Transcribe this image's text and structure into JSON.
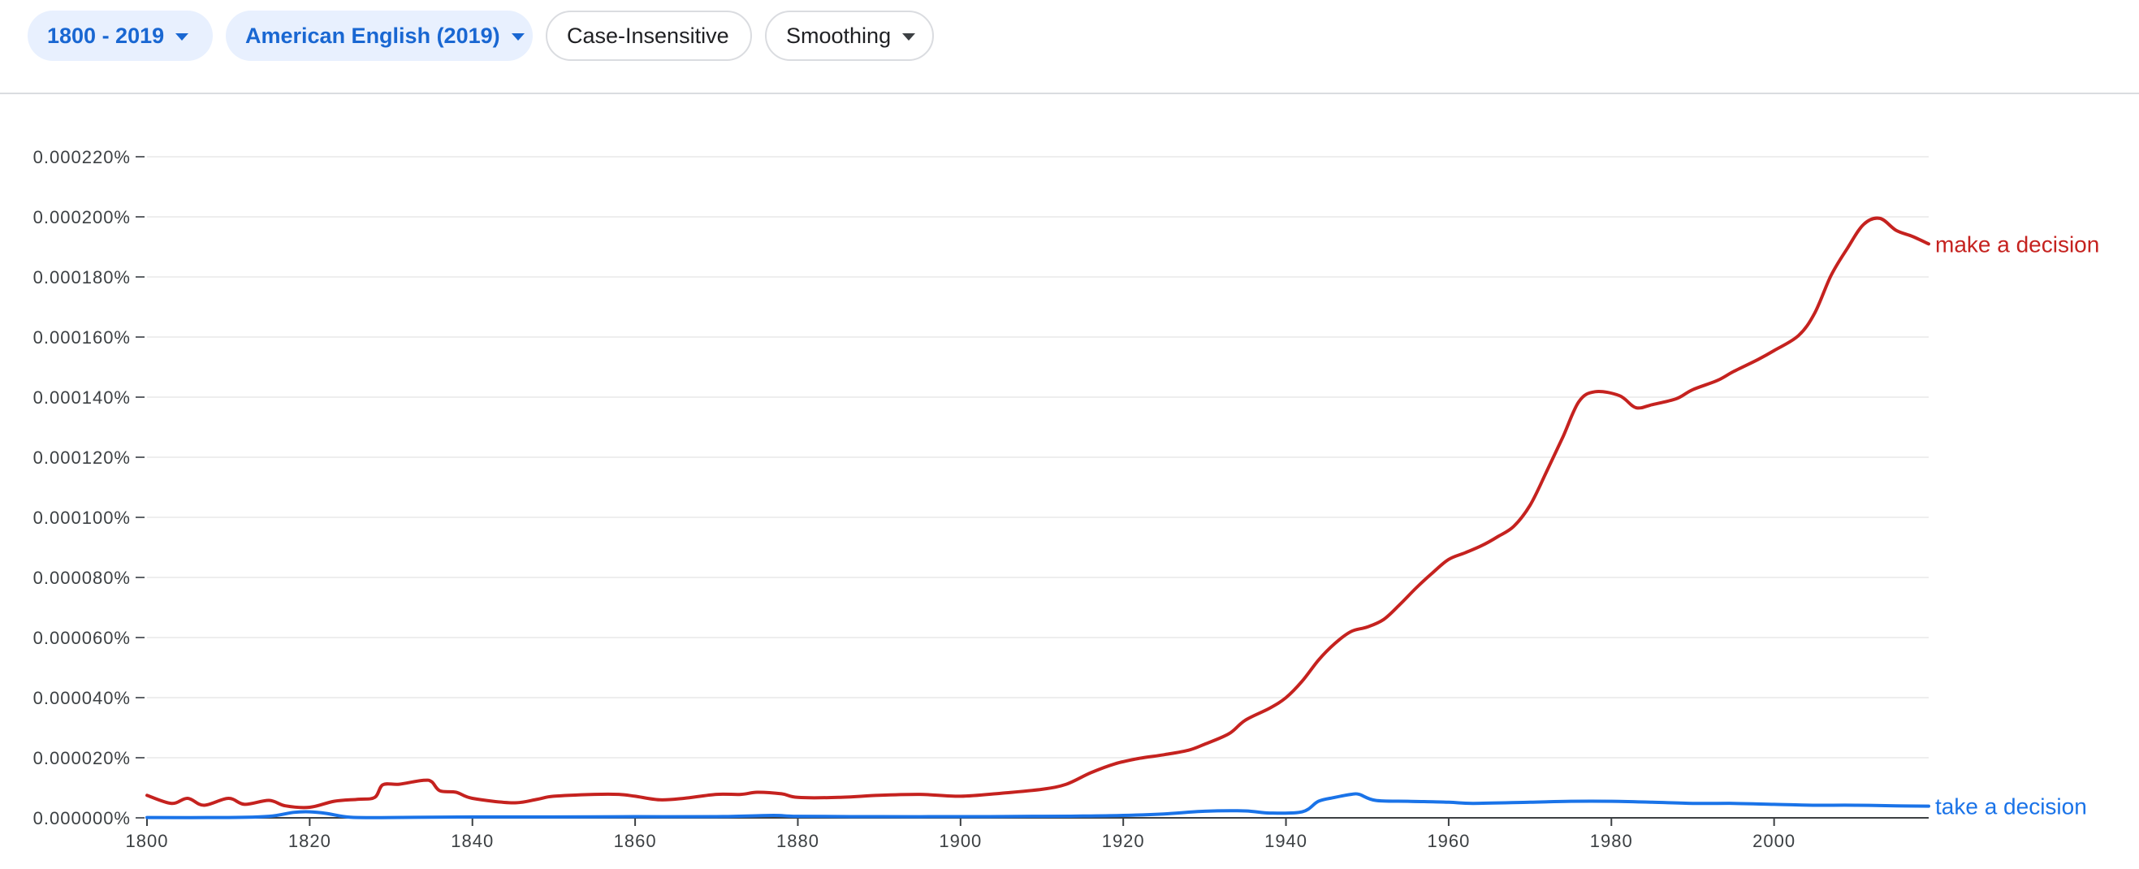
{
  "toolbar": {
    "year_range_label": "1800 - 2019",
    "corpus_label": "American English (2019)",
    "case_label": "Case-Insensitive",
    "smoothing_label": "Smoothing"
  },
  "colors": {
    "accent_blue": "#1967d2",
    "chip_bg": "#e8f0fe",
    "series_red": "#c5221f",
    "series_blue": "#1a73e8"
  },
  "chart_data": {
    "type": "line",
    "title": "",
    "xlabel": "",
    "ylabel": "",
    "xlim": [
      1800,
      2019
    ],
    "ylim": [
      0,
      0.00022
    ],
    "grid": true,
    "legend": "end-of-line labels",
    "x_ticks": [
      "1800",
      "1820",
      "1840",
      "1860",
      "1880",
      "1900",
      "1920",
      "1940",
      "1960",
      "1980",
      "2000"
    ],
    "y_ticks": [
      "0.000000%",
      "0.000020%",
      "0.000040%",
      "0.000060%",
      "0.000080%",
      "0.000100%",
      "0.000120%",
      "0.000140%",
      "0.000160%",
      "0.000180%",
      "0.000200%",
      "0.000220%"
    ],
    "series": [
      {
        "name": "make a decision",
        "color": "#c5221f",
        "points": [
          [
            1800,
            7.5e-06
          ],
          [
            1803,
            4.8e-06
          ],
          [
            1805,
            6.5e-06
          ],
          [
            1807,
            4.2e-06
          ],
          [
            1810,
            6.5e-06
          ],
          [
            1812,
            4.5e-06
          ],
          [
            1815,
            5.8e-06
          ],
          [
            1817,
            4e-06
          ],
          [
            1820,
            3.5e-06
          ],
          [
            1823,
            5.5e-06
          ],
          [
            1826,
            6.2e-06
          ],
          [
            1828,
            6.8e-06
          ],
          [
            1829,
            1.1e-05
          ],
          [
            1831,
            1.12e-05
          ],
          [
            1834,
            1.25e-05
          ],
          [
            1835,
            1.2e-05
          ],
          [
            1836,
            9e-06
          ],
          [
            1838,
            8.5e-06
          ],
          [
            1840,
            6.5e-06
          ],
          [
            1845,
            5e-06
          ],
          [
            1848,
            6.2e-06
          ],
          [
            1850,
            7.2e-06
          ],
          [
            1855,
            7.8e-06
          ],
          [
            1858,
            7.8e-06
          ],
          [
            1860,
            7.2e-06
          ],
          [
            1863,
            6e-06
          ],
          [
            1866,
            6.5e-06
          ],
          [
            1870,
            7.8e-06
          ],
          [
            1873,
            7.8e-06
          ],
          [
            1875,
            8.5e-06
          ],
          [
            1878,
            8e-06
          ],
          [
            1880,
            6.8e-06
          ],
          [
            1885,
            6.8e-06
          ],
          [
            1890,
            7.5e-06
          ],
          [
            1895,
            7.8e-06
          ],
          [
            1900,
            7.2e-06
          ],
          [
            1905,
            8.2e-06
          ],
          [
            1910,
            9.5e-06
          ],
          [
            1913,
            1.12e-05
          ],
          [
            1916,
            1.5e-05
          ],
          [
            1919,
            1.8e-05
          ],
          [
            1922,
            1.98e-05
          ],
          [
            1925,
            2.1e-05
          ],
          [
            1928,
            2.25e-05
          ],
          [
            1930,
            2.45e-05
          ],
          [
            1933,
            2.8e-05
          ],
          [
            1935,
            3.25e-05
          ],
          [
            1938,
            3.65e-05
          ],
          [
            1940,
            4e-05
          ],
          [
            1942,
            4.55e-05
          ],
          [
            1944,
            5.25e-05
          ],
          [
            1946,
            5.8e-05
          ],
          [
            1948,
            6.2e-05
          ],
          [
            1950,
            6.35e-05
          ],
          [
            1952,
            6.6e-05
          ],
          [
            1954,
            7.1e-05
          ],
          [
            1956,
            7.65e-05
          ],
          [
            1958,
            8.15e-05
          ],
          [
            1960,
            8.6e-05
          ],
          [
            1962,
            8.82e-05
          ],
          [
            1964,
            9.05e-05
          ],
          [
            1966,
            9.35e-05
          ],
          [
            1968,
            9.7e-05
          ],
          [
            1970,
            0.000104
          ],
          [
            1972,
            0.000115
          ],
          [
            1974,
            0.0001265
          ],
          [
            1976,
            0.0001385
          ],
          [
            1978,
            0.0001418
          ],
          [
            1981,
            0.0001405
          ],
          [
            1983,
            0.0001365
          ],
          [
            1985,
            0.0001375
          ],
          [
            1988,
            0.0001395
          ],
          [
            1990,
            0.0001425
          ],
          [
            1993,
            0.0001455
          ],
          [
            1995,
            0.0001485
          ],
          [
            1998,
            0.0001525
          ],
          [
            2000,
            0.0001555
          ],
          [
            2003,
            0.0001605
          ],
          [
            2005,
            0.000168
          ],
          [
            2007,
            0.0001805
          ],
          [
            2009,
            0.0001895
          ],
          [
            2011,
            0.0001975
          ],
          [
            2013,
            0.0001995
          ],
          [
            2015,
            0.0001955
          ],
          [
            2017,
            0.0001935
          ],
          [
            2019,
            0.000191
          ]
        ]
      },
      {
        "name": "take a decision",
        "color": "#1a73e8",
        "points": [
          [
            1800,
            1e-07
          ],
          [
            1810,
            1e-07
          ],
          [
            1815,
            5e-07
          ],
          [
            1818,
            1.8e-06
          ],
          [
            1820,
            2e-06
          ],
          [
            1822,
            1.5e-06
          ],
          [
            1825,
            2e-07
          ],
          [
            1830,
            1e-07
          ],
          [
            1840,
            3e-07
          ],
          [
            1850,
            3e-07
          ],
          [
            1860,
            4e-07
          ],
          [
            1870,
            4e-07
          ],
          [
            1877,
            8e-07
          ],
          [
            1880,
            5e-07
          ],
          [
            1890,
            4e-07
          ],
          [
            1900,
            4e-07
          ],
          [
            1910,
            5e-07
          ],
          [
            1915,
            6e-07
          ],
          [
            1920,
            8e-07
          ],
          [
            1925,
            1.3e-06
          ],
          [
            1930,
            2.2e-06
          ],
          [
            1935,
            2.3e-06
          ],
          [
            1938,
            1.6e-06
          ],
          [
            1942,
            2e-06
          ],
          [
            1944,
            5.5e-06
          ],
          [
            1946,
            6.8e-06
          ],
          [
            1948,
            7.8e-06
          ],
          [
            1949,
            7.8e-06
          ],
          [
            1951,
            5.8e-06
          ],
          [
            1955,
            5.5e-06
          ],
          [
            1960,
            5.2e-06
          ],
          [
            1963,
            4.8e-06
          ],
          [
            1970,
            5.2e-06
          ],
          [
            1975,
            5.5e-06
          ],
          [
            1980,
            5.5e-06
          ],
          [
            1985,
            5.2e-06
          ],
          [
            1990,
            4.8e-06
          ],
          [
            1995,
            4.8e-06
          ],
          [
            2000,
            4.5e-06
          ],
          [
            2005,
            4.2e-06
          ],
          [
            2010,
            4.2e-06
          ],
          [
            2015,
            4e-06
          ],
          [
            2019,
            3.9e-06
          ]
        ]
      }
    ]
  }
}
